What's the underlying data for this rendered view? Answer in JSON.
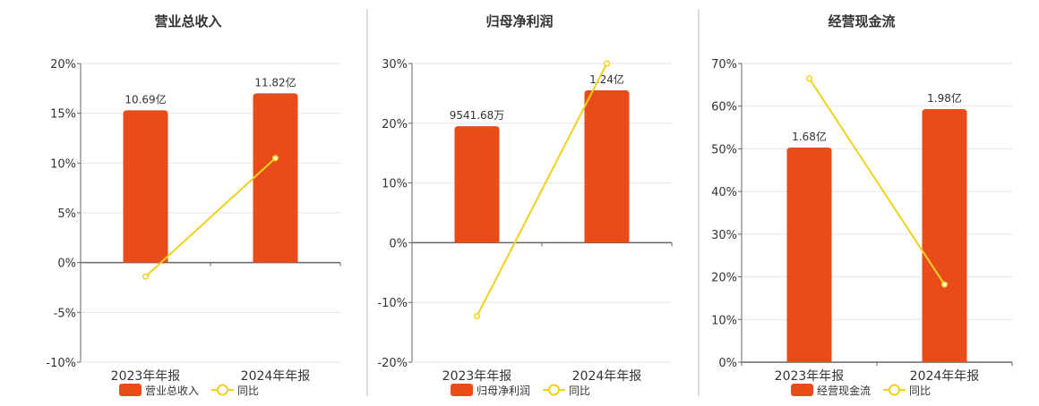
{
  "chart_data": [
    {
      "type": "bar",
      "title": "营业总收入",
      "categories": [
        "2023年年报",
        "2024年年报"
      ],
      "series": [
        {
          "name": "营业总收入",
          "kind": "bar",
          "value_labels": [
            "10.69亿",
            "11.82亿"
          ],
          "bar_heights_pct": [
            15.3,
            17.0
          ]
        },
        {
          "name": "同比",
          "kind": "line",
          "values": [
            -1.4,
            10.5
          ]
        }
      ],
      "ylim": [
        -10,
        20
      ],
      "yticks": [
        20,
        15,
        10,
        5,
        0,
        -5,
        -10
      ],
      "ytick_labels": [
        "20%",
        "15%",
        "10%",
        "5%",
        "0%",
        "-5%",
        "-10%"
      ],
      "grid": true,
      "legend": "bottom"
    },
    {
      "type": "bar",
      "title": "归母净利润",
      "categories": [
        "2023年年报",
        "2024年年报"
      ],
      "series": [
        {
          "name": "归母净利润",
          "kind": "bar",
          "value_labels": [
            "9541.68万",
            "1.24亿"
          ],
          "bar_heights_pct": [
            19.5,
            25.5
          ]
        },
        {
          "name": "同比",
          "kind": "line",
          "values": [
            -12.3,
            30.0
          ]
        }
      ],
      "ylim": [
        -20,
        30
      ],
      "yticks": [
        30,
        20,
        10,
        0,
        -10,
        -20
      ],
      "ytick_labels": [
        "30%",
        "20%",
        "10%",
        "0%",
        "-10%",
        "-20%"
      ],
      "grid": true,
      "legend": "bottom"
    },
    {
      "type": "bar",
      "title": "经营现金流",
      "categories": [
        "2023年年报",
        "2024年年报"
      ],
      "series": [
        {
          "name": "经营现金流",
          "kind": "bar",
          "value_labels": [
            "1.68亿",
            "1.98亿"
          ],
          "bar_heights_pct": [
            50.3,
            59.3
          ]
        },
        {
          "name": "同比",
          "kind": "line",
          "values": [
            66.5,
            18.2
          ]
        }
      ],
      "ylim": [
        0,
        70
      ],
      "yticks": [
        70,
        60,
        50,
        40,
        30,
        20,
        10,
        0
      ],
      "ytick_labels": [
        "70%",
        "60%",
        "50%",
        "40%",
        "30%",
        "20%",
        "10%",
        "0%"
      ],
      "grid": true,
      "legend": "bottom"
    }
  ],
  "colors": {
    "bar": "#e84c1a",
    "line": "#f0d21c",
    "axis": "#666666",
    "grid": "#e6e6e6",
    "divider": "#bbbbbb",
    "text": "#333333"
  }
}
